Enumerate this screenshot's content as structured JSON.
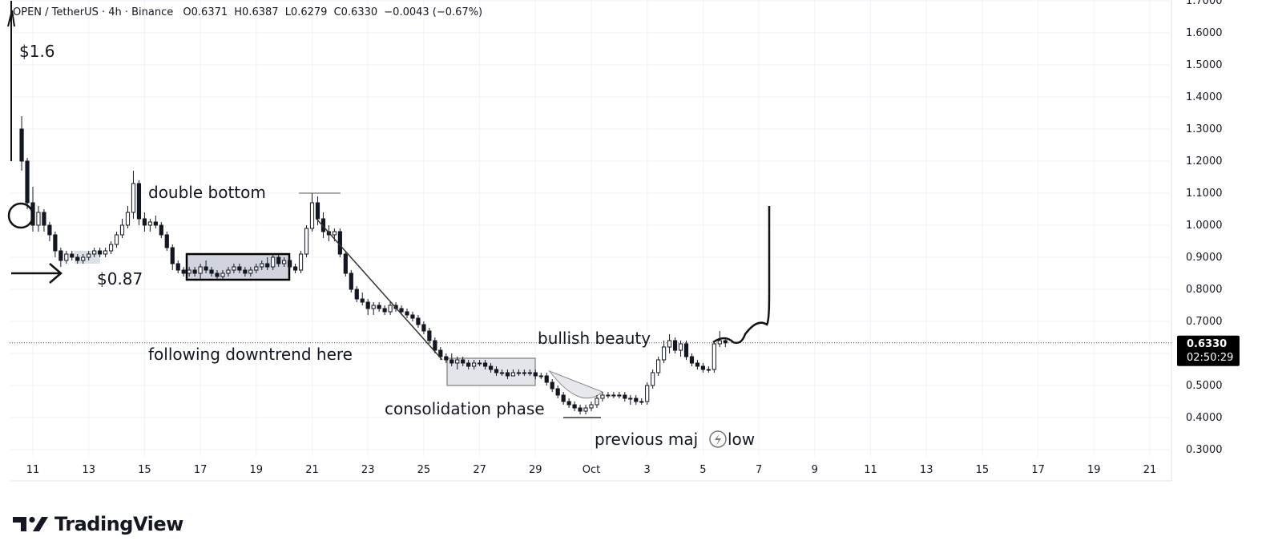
{
  "header": {
    "symbol": "OPEN / TetherUS · 4h · Binance",
    "open": "O0.6371",
    "high": "H0.6387",
    "low": "L0.6279",
    "close": "C0.6330",
    "change": "−0.0043 (−0.67%)"
  },
  "brand": {
    "name": "TradingView"
  },
  "price_badge": {
    "price": "0.6330",
    "countdown": "02:50:29",
    "color": "#000000"
  },
  "colors": {
    "candle": "#131722",
    "annotation": "#111111",
    "grid": "#f0f3fa",
    "box_fill": "#d1d4dc"
  },
  "chart_data": {
    "type": "candlestick",
    "symbol": "OPEN/USDT",
    "timeframe": "4h",
    "exchange": "Binance",
    "y_axis": {
      "scale": "linear",
      "ticks": [
        "0.3000",
        "0.4000",
        "0.5000",
        "0.6000",
        "0.7000",
        "0.8000",
        "0.9000",
        "1.0000",
        "1.1000",
        "1.2000",
        "1.3000",
        "1.4000",
        "1.5000",
        "1.6000",
        "1.7000"
      ],
      "range": [
        0.25,
        1.72
      ]
    },
    "x_axis": {
      "ticks": [
        "11",
        "13",
        "15",
        "17",
        "19",
        "21",
        "23",
        "25",
        "27",
        "29",
        "Oct",
        "3",
        "5",
        "7",
        "9",
        "11",
        "13",
        "15",
        "17",
        "19",
        "21"
      ],
      "range_days": [
        10.6,
        52.0
      ]
    },
    "last_price": 0.633,
    "ohlc_4h_approx": [
      [
        10.6,
        1.3,
        1.34,
        1.17,
        1.2
      ],
      [
        10.8,
        1.2,
        1.21,
        1.05,
        1.07
      ],
      [
        11.0,
        1.07,
        1.12,
        0.98,
        1.0
      ],
      [
        11.2,
        1.0,
        1.06,
        0.98,
        1.04
      ],
      [
        11.4,
        1.04,
        1.05,
        0.98,
        1.0
      ],
      [
        11.6,
        1.0,
        1.01,
        0.95,
        0.97
      ],
      [
        11.8,
        0.97,
        0.98,
        0.9,
        0.92
      ],
      [
        12.0,
        0.92,
        0.93,
        0.87,
        0.89
      ],
      [
        12.2,
        0.89,
        0.92,
        0.88,
        0.91
      ],
      [
        12.4,
        0.91,
        0.92,
        0.89,
        0.9
      ],
      [
        12.6,
        0.9,
        0.91,
        0.88,
        0.89
      ],
      [
        12.8,
        0.89,
        0.91,
        0.88,
        0.9
      ],
      [
        13.0,
        0.9,
        0.92,
        0.89,
        0.91
      ],
      [
        13.2,
        0.91,
        0.93,
        0.9,
        0.92
      ],
      [
        13.4,
        0.92,
        0.93,
        0.9,
        0.91
      ],
      [
        13.6,
        0.91,
        0.93,
        0.9,
        0.92
      ],
      [
        13.8,
        0.92,
        0.95,
        0.91,
        0.94
      ],
      [
        14.0,
        0.94,
        0.98,
        0.93,
        0.97
      ],
      [
        14.2,
        0.97,
        1.02,
        0.96,
        1.0
      ],
      [
        14.4,
        1.0,
        1.06,
        0.99,
        1.04
      ],
      [
        14.6,
        1.04,
        1.17,
        1.02,
        1.13
      ],
      [
        14.8,
        1.13,
        1.14,
        1.0,
        1.02
      ],
      [
        15.0,
        1.02,
        1.04,
        0.98,
        1.0
      ],
      [
        15.2,
        1.0,
        1.02,
        0.98,
        1.01
      ],
      [
        15.4,
        1.01,
        1.03,
        0.99,
        1.0
      ],
      [
        15.6,
        1.0,
        1.01,
        0.96,
        0.97
      ],
      [
        15.8,
        0.97,
        0.98,
        0.92,
        0.93
      ],
      [
        16.0,
        0.93,
        0.94,
        0.86,
        0.88
      ],
      [
        16.2,
        0.88,
        0.89,
        0.85,
        0.86
      ],
      [
        16.4,
        0.86,
        0.87,
        0.84,
        0.85
      ],
      [
        16.6,
        0.85,
        0.87,
        0.84,
        0.86
      ],
      [
        16.8,
        0.86,
        0.87,
        0.84,
        0.85
      ],
      [
        17.0,
        0.85,
        0.88,
        0.83,
        0.87
      ],
      [
        17.2,
        0.87,
        0.89,
        0.85,
        0.86
      ],
      [
        17.4,
        0.86,
        0.87,
        0.84,
        0.85
      ],
      [
        17.6,
        0.85,
        0.86,
        0.83,
        0.84
      ],
      [
        17.8,
        0.84,
        0.86,
        0.83,
        0.85
      ],
      [
        18.0,
        0.85,
        0.87,
        0.84,
        0.86
      ],
      [
        18.2,
        0.86,
        0.88,
        0.85,
        0.87
      ],
      [
        18.4,
        0.87,
        0.88,
        0.85,
        0.86
      ],
      [
        18.6,
        0.86,
        0.87,
        0.84,
        0.85
      ],
      [
        18.8,
        0.85,
        0.87,
        0.84,
        0.86
      ],
      [
        19.0,
        0.86,
        0.88,
        0.85,
        0.87
      ],
      [
        19.2,
        0.87,
        0.89,
        0.86,
        0.88
      ],
      [
        19.4,
        0.88,
        0.9,
        0.86,
        0.87
      ],
      [
        19.6,
        0.87,
        0.91,
        0.86,
        0.9
      ],
      [
        19.8,
        0.9,
        0.91,
        0.87,
        0.88
      ],
      [
        20.0,
        0.88,
        0.9,
        0.87,
        0.89
      ],
      [
        20.2,
        0.89,
        0.9,
        0.86,
        0.87
      ],
      [
        20.4,
        0.87,
        0.88,
        0.85,
        0.86
      ],
      [
        20.6,
        0.86,
        0.92,
        0.85,
        0.91
      ],
      [
        20.8,
        0.91,
        1.0,
        0.9,
        0.99
      ],
      [
        21.0,
        0.99,
        1.1,
        0.98,
        1.07
      ],
      [
        21.2,
        1.07,
        1.09,
        1.0,
        1.02
      ],
      [
        21.4,
        1.02,
        1.04,
        0.96,
        0.98
      ],
      [
        21.6,
        0.98,
        1.0,
        0.95,
        0.97
      ],
      [
        21.8,
        0.97,
        0.99,
        0.95,
        0.98
      ],
      [
        22.0,
        0.98,
        0.99,
        0.9,
        0.91
      ],
      [
        22.2,
        0.91,
        0.92,
        0.84,
        0.85
      ],
      [
        22.4,
        0.85,
        0.86,
        0.79,
        0.8
      ],
      [
        22.6,
        0.8,
        0.81,
        0.76,
        0.77
      ],
      [
        22.8,
        0.77,
        0.79,
        0.75,
        0.76
      ],
      [
        23.0,
        0.76,
        0.77,
        0.72,
        0.74
      ],
      [
        23.2,
        0.74,
        0.76,
        0.72,
        0.75
      ],
      [
        23.4,
        0.75,
        0.76,
        0.73,
        0.74
      ],
      [
        23.6,
        0.74,
        0.75,
        0.72,
        0.73
      ],
      [
        23.8,
        0.73,
        0.76,
        0.72,
        0.75
      ],
      [
        24.0,
        0.75,
        0.76,
        0.73,
        0.74
      ],
      [
        24.2,
        0.74,
        0.75,
        0.72,
        0.73
      ],
      [
        24.4,
        0.73,
        0.74,
        0.71,
        0.72
      ],
      [
        24.6,
        0.72,
        0.73,
        0.7,
        0.71
      ],
      [
        24.8,
        0.71,
        0.72,
        0.68,
        0.69
      ],
      [
        25.0,
        0.69,
        0.7,
        0.66,
        0.67
      ],
      [
        25.2,
        0.67,
        0.68,
        0.63,
        0.64
      ],
      [
        25.4,
        0.64,
        0.65,
        0.6,
        0.61
      ],
      [
        25.6,
        0.61,
        0.62,
        0.58,
        0.59
      ],
      [
        25.8,
        0.59,
        0.6,
        0.57,
        0.58
      ],
      [
        26.0,
        0.58,
        0.6,
        0.56,
        0.57
      ],
      [
        26.2,
        0.57,
        0.59,
        0.55,
        0.58
      ],
      [
        26.4,
        0.58,
        0.59,
        0.56,
        0.57
      ],
      [
        26.6,
        0.57,
        0.58,
        0.55,
        0.56
      ],
      [
        26.8,
        0.56,
        0.58,
        0.55,
        0.57
      ],
      [
        27.0,
        0.57,
        0.58,
        0.56,
        0.57
      ],
      [
        27.2,
        0.57,
        0.58,
        0.55,
        0.56
      ],
      [
        27.4,
        0.56,
        0.57,
        0.54,
        0.55
      ],
      [
        27.6,
        0.55,
        0.56,
        0.53,
        0.54
      ],
      [
        27.8,
        0.54,
        0.55,
        0.53,
        0.54
      ],
      [
        28.0,
        0.54,
        0.55,
        0.52,
        0.53
      ],
      [
        28.2,
        0.53,
        0.55,
        0.53,
        0.54
      ],
      [
        28.4,
        0.54,
        0.55,
        0.53,
        0.54
      ],
      [
        28.6,
        0.54,
        0.55,
        0.53,
        0.54
      ],
      [
        28.8,
        0.54,
        0.55,
        0.53,
        0.54
      ],
      [
        29.0,
        0.54,
        0.55,
        0.52,
        0.53
      ],
      [
        29.2,
        0.53,
        0.54,
        0.52,
        0.53
      ],
      [
        29.4,
        0.53,
        0.54,
        0.5,
        0.51
      ],
      [
        29.6,
        0.51,
        0.52,
        0.48,
        0.49
      ],
      [
        29.8,
        0.49,
        0.5,
        0.46,
        0.47
      ],
      [
        30.0,
        0.47,
        0.48,
        0.44,
        0.45
      ],
      [
        30.2,
        0.45,
        0.46,
        0.43,
        0.44
      ],
      [
        30.4,
        0.44,
        0.45,
        0.42,
        0.43
      ],
      [
        30.6,
        0.43,
        0.44,
        0.41,
        0.42
      ],
      [
        30.8,
        0.42,
        0.44,
        0.41,
        0.43
      ],
      [
        31.0,
        0.43,
        0.45,
        0.42,
        0.44
      ],
      [
        31.2,
        0.44,
        0.47,
        0.43,
        0.46
      ],
      [
        31.4,
        0.46,
        0.48,
        0.45,
        0.47
      ],
      [
        31.6,
        0.47,
        0.48,
        0.46,
        0.47
      ],
      [
        31.8,
        0.47,
        0.48,
        0.46,
        0.47
      ],
      [
        32.0,
        0.47,
        0.48,
        0.46,
        0.47
      ],
      [
        32.2,
        0.47,
        0.48,
        0.45,
        0.46
      ],
      [
        32.4,
        0.46,
        0.47,
        0.44,
        0.46
      ],
      [
        32.6,
        0.46,
        0.47,
        0.44,
        0.45
      ],
      [
        32.8,
        0.45,
        0.46,
        0.44,
        0.45
      ],
      [
        33.0,
        0.45,
        0.51,
        0.44,
        0.5
      ],
      [
        33.2,
        0.5,
        0.55,
        0.49,
        0.54
      ],
      [
        33.4,
        0.54,
        0.59,
        0.53,
        0.58
      ],
      [
        33.6,
        0.58,
        0.64,
        0.57,
        0.62
      ],
      [
        33.8,
        0.62,
        0.66,
        0.6,
        0.64
      ],
      [
        34.0,
        0.64,
        0.65,
        0.6,
        0.61
      ],
      [
        34.2,
        0.61,
        0.64,
        0.59,
        0.63
      ],
      [
        34.4,
        0.63,
        0.64,
        0.58,
        0.59
      ],
      [
        34.6,
        0.59,
        0.6,
        0.56,
        0.57
      ],
      [
        34.8,
        0.57,
        0.58,
        0.55,
        0.56
      ],
      [
        35.0,
        0.56,
        0.57,
        0.54,
        0.55
      ],
      [
        35.2,
        0.55,
        0.56,
        0.54,
        0.55
      ],
      [
        35.4,
        0.55,
        0.64,
        0.54,
        0.63
      ],
      [
        35.6,
        0.63,
        0.67,
        0.62,
        0.64
      ],
      [
        35.8,
        0.64,
        0.65,
        0.62,
        0.633
      ]
    ],
    "annotations": [
      {
        "text": "$1.6"
      },
      {
        "text": "double bottom"
      },
      {
        "text": "$0.87"
      },
      {
        "text": "following downtrend here"
      },
      {
        "text": "bullish beauty"
      },
      {
        "text": "consolidation phase"
      },
      {
        "text": "previous maj",
        "text_after_icon": "low"
      }
    ]
  }
}
